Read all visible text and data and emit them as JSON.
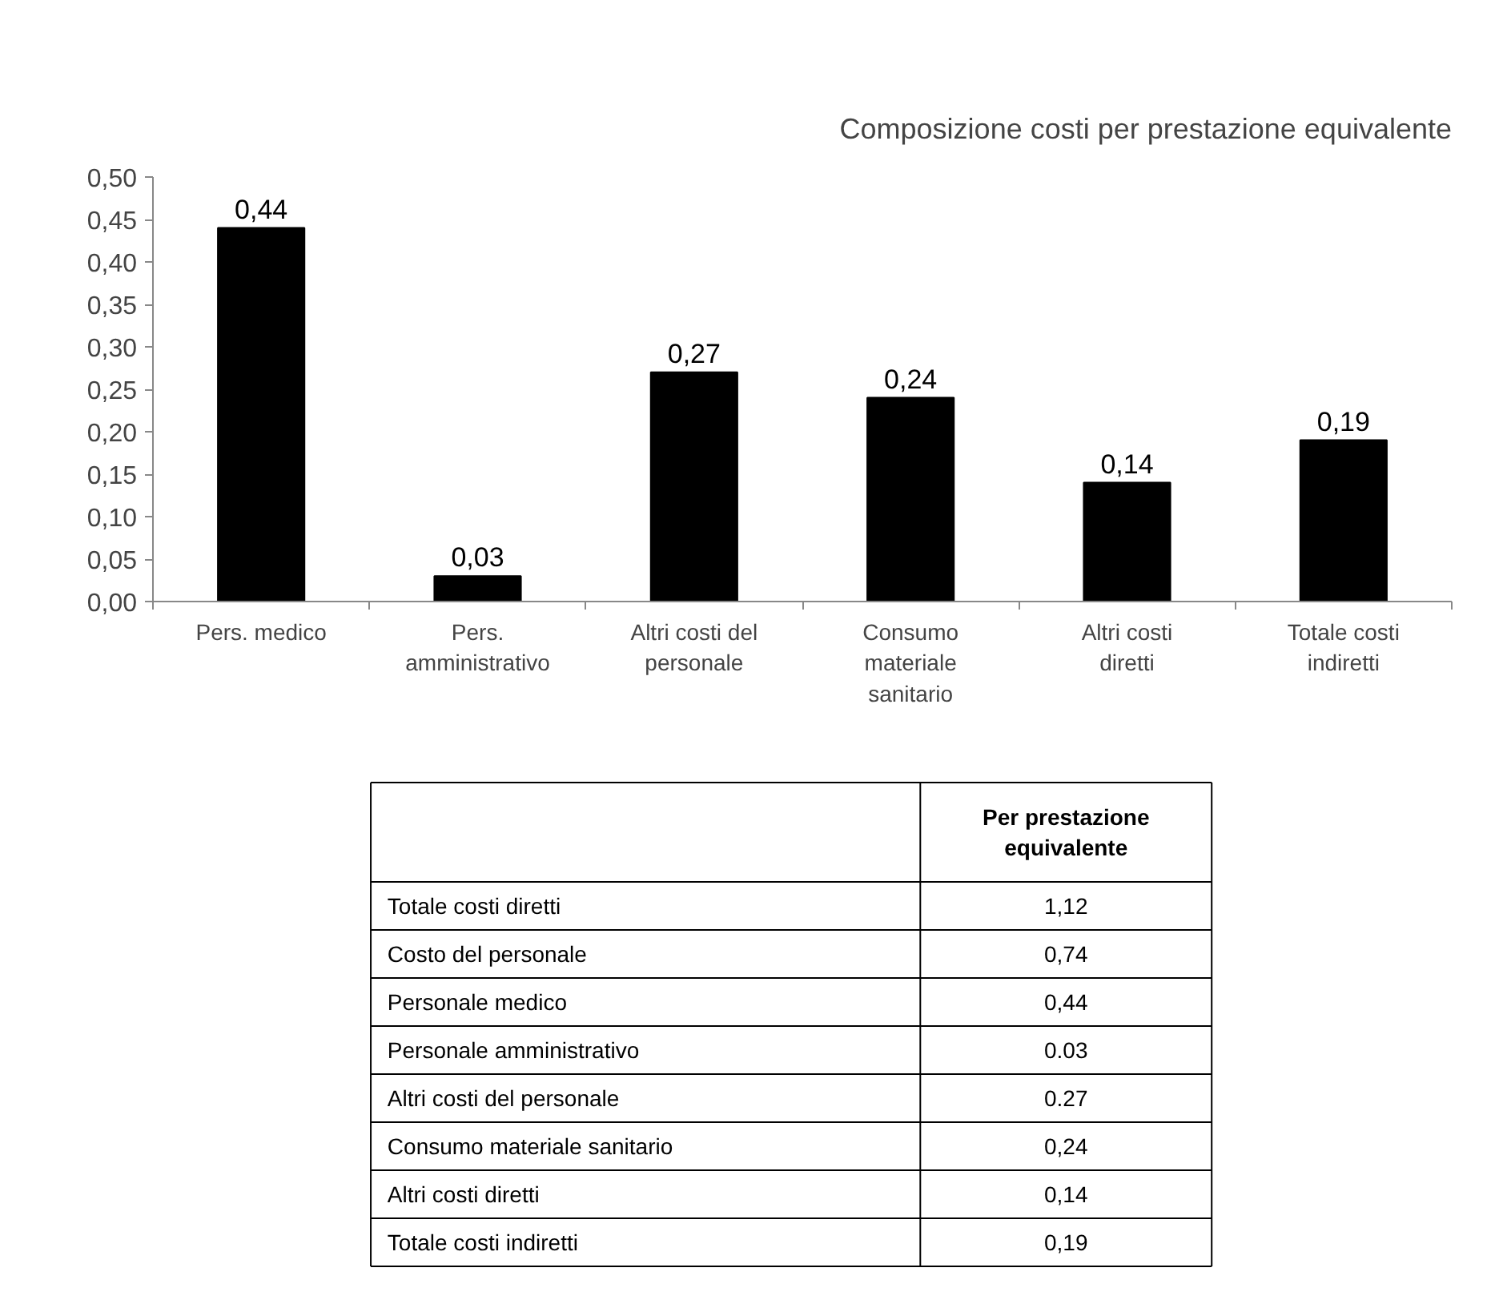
{
  "chart_data": [
    {
      "type": "bar",
      "title": "Composizione costi per prestazione equivalente",
      "categories": [
        "Pers. medico",
        "Pers. amministrativo",
        "Altri costi del personale",
        "Consumo materiale sanitario",
        "Altri costi diretti",
        "Totale costi indiretti"
      ],
      "values": [
        0.44,
        0.03,
        0.27,
        0.24,
        0.14,
        0.19
      ],
      "value_labels": [
        "0,44",
        "0,03",
        "0,27",
        "0,24",
        "0,14",
        "0,19"
      ],
      "color": "#000000",
      "ylim": [
        0,
        0.5
      ],
      "yticks": [
        {
          "value": 0,
          "label": "0,00"
        },
        {
          "value": 0.05,
          "label": "0,05"
        },
        {
          "value": 0.1,
          "label": "0,10"
        },
        {
          "value": 0.15,
          "label": "0,15"
        },
        {
          "value": 0.2,
          "label": "0,20"
        },
        {
          "value": 0.25,
          "label": "0,25"
        },
        {
          "value": 0.3,
          "label": "0,30"
        },
        {
          "value": 0.35,
          "label": "0,35"
        },
        {
          "value": 0.4,
          "label": "0,40"
        },
        {
          "value": 0.45,
          "label": "0,45"
        },
        {
          "value": 0.5,
          "label": "0,50"
        }
      ],
      "grid": false
    },
    {
      "type": "other",
      "title": "Per prestazione equivalente",
      "categories": [
        "Totale costi diretti",
        "Costo del personale",
        "Personale medico",
        "Personale amministrativo",
        "Altri costi del personale",
        "Consumo materiale sanitario",
        "Altri costi diretti",
        "Totale costi indiretti"
      ],
      "value_labels": [
        "1,12",
        "0,74",
        "0,44",
        "0.03",
        "0.27",
        "0,24",
        "0,14",
        "0,19"
      ]
    }
  ]
}
